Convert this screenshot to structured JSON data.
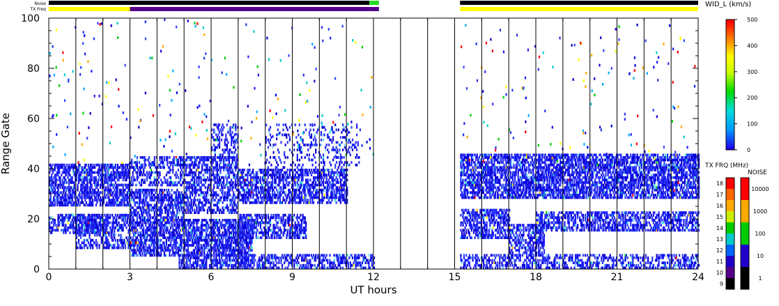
{
  "chart_data": {
    "type": "heatmap",
    "title": "",
    "xlabel": "UT hours",
    "ylabel": "Range Gate",
    "xlim": [
      0,
      24
    ],
    "ylim": [
      0,
      100
    ],
    "x_ticks": [
      0,
      3,
      6,
      9,
      12,
      15,
      18,
      21,
      24
    ],
    "y_ticks": [
      0,
      20,
      40,
      60,
      80,
      100
    ],
    "data_gap_hours": [
      12.0,
      15.2
    ],
    "noise_label": "Noise",
    "txfreq_label": "TX Freq",
    "noise_bar_segments": [
      {
        "start": 0.0,
        "end": 11.85,
        "color": "#000000"
      },
      {
        "start": 11.85,
        "end": 12.2,
        "color": "#22dd22"
      },
      {
        "start": 15.2,
        "end": 24.0,
        "color": "#000000"
      }
    ],
    "txfreq_bar_segments": [
      {
        "start": 0.0,
        "end": 3.0,
        "color": "#ffff00"
      },
      {
        "start": 3.0,
        "end": 11.85,
        "color": "#550088"
      },
      {
        "start": 11.85,
        "end": 12.2,
        "color": "#550088"
      },
      {
        "start": 15.2,
        "end": 24.0,
        "color": "#ffff00"
      }
    ],
    "echo_bands": [
      {
        "t0": 0.0,
        "t1": 3.0,
        "g0": 25,
        "g1": 42,
        "intensity": 0.9
      },
      {
        "t0": 0.0,
        "t1": 2.2,
        "g0": 14,
        "g1": 22,
        "intensity": 0.8
      },
      {
        "t0": 1.0,
        "t1": 3.0,
        "g0": 8,
        "g1": 22,
        "intensity": 0.6
      },
      {
        "t0": 3.0,
        "t1": 5.0,
        "g0": 20,
        "g1": 32,
        "intensity": 0.8
      },
      {
        "t0": 3.0,
        "t1": 5.0,
        "g0": 33,
        "g1": 45,
        "intensity": 0.6
      },
      {
        "t0": 3.0,
        "t1": 7.5,
        "g0": 5,
        "g1": 20,
        "intensity": 0.9
      },
      {
        "t0": 4.8,
        "t1": 7.5,
        "g0": 0,
        "g1": 6,
        "intensity": 0.7
      },
      {
        "t0": 5.0,
        "t1": 7.0,
        "g0": 22,
        "g1": 45,
        "intensity": 0.7
      },
      {
        "t0": 6.0,
        "t1": 7.0,
        "g0": 44,
        "g1": 58,
        "intensity": 0.5
      },
      {
        "t0": 7.0,
        "t1": 11.0,
        "g0": 26,
        "g1": 40,
        "intensity": 0.8
      },
      {
        "t0": 7.0,
        "t1": 9.5,
        "g0": 12,
        "g1": 22,
        "intensity": 0.7
      },
      {
        "t0": 7.0,
        "t1": 12.0,
        "g0": 0,
        "g1": 6,
        "intensity": 0.6
      },
      {
        "t0": 8.0,
        "t1": 11.5,
        "g0": 40,
        "g1": 58,
        "intensity": 0.25
      },
      {
        "t0": 15.2,
        "t1": 24.0,
        "g0": 28,
        "g1": 46,
        "intensity": 0.9
      },
      {
        "t0": 15.2,
        "t1": 17.0,
        "g0": 12,
        "g1": 24,
        "intensity": 0.8
      },
      {
        "t0": 17.0,
        "t1": 18.3,
        "g0": 5,
        "g1": 18,
        "intensity": 0.7
      },
      {
        "t0": 18.0,
        "t1": 24.0,
        "g0": 15,
        "g1": 23,
        "intensity": 0.7
      },
      {
        "t0": 15.2,
        "t1": 24.0,
        "g0": 0,
        "g1": 6,
        "intensity": 0.6
      }
    ],
    "width_scale": {
      "label": "WID_L (km/s)",
      "min": 0,
      "max": 500,
      "ticks": [
        0,
        100,
        200,
        300,
        400,
        500
      ]
    },
    "txfrq_scale": {
      "label": "TX FRQ (MHz)",
      "ticks": [
        9,
        10,
        11,
        12,
        13,
        14,
        15,
        16,
        17,
        18
      ],
      "colors": [
        "#000000",
        "#550088",
        "#2200cc",
        "#0066ff",
        "#00cccc",
        "#00cc00",
        "#ccee00",
        "#ffaa00",
        "#ff6600",
        "#ff0000"
      ]
    },
    "noise_scale": {
      "label": "NOISE",
      "ticks": [
        "1",
        "10",
        "100",
        "1000",
        "10000"
      ],
      "colors": [
        "#000000",
        "#2200cc",
        "#00cc00",
        "#ffaa00",
        "#ff0000"
      ]
    }
  }
}
